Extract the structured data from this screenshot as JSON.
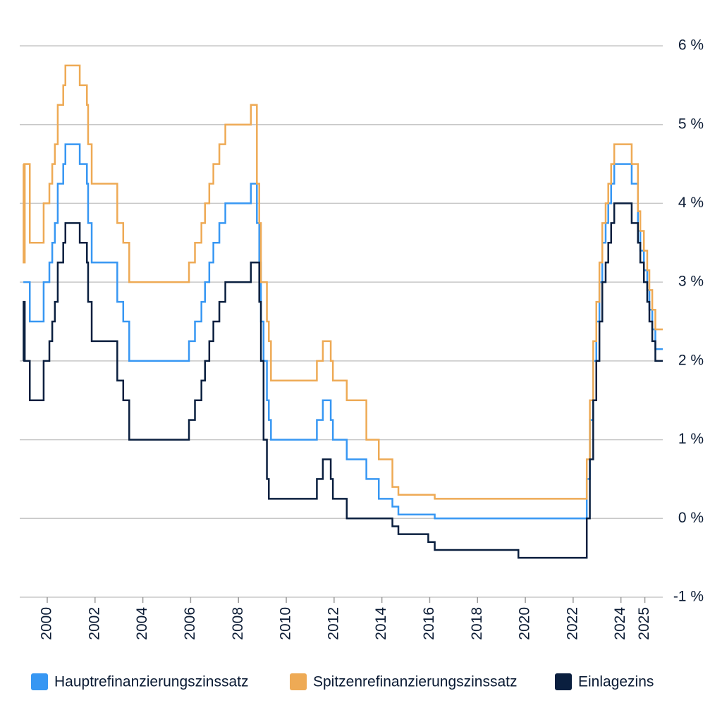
{
  "chart_data": {
    "type": "line",
    "step": true,
    "x": [
      1999.0,
      1999.01,
      1999.06,
      1999.27,
      1999.85,
      2000.09,
      2000.21,
      2000.32,
      2000.44,
      2000.67,
      2000.76,
      2001.36,
      2001.66,
      2001.71,
      2001.86,
      2002.93,
      2003.18,
      2003.43,
      2005.93,
      2006.18,
      2006.45,
      2006.6,
      2006.78,
      2006.95,
      2007.2,
      2007.45,
      2008.52,
      2008.77,
      2008.87,
      2008.94,
      2009.05,
      2009.19,
      2009.27,
      2009.36,
      2011.28,
      2011.53,
      2011.86,
      2011.95,
      2012.53,
      2013.35,
      2013.87,
      2014.44,
      2014.69,
      2015.94,
      2016.21,
      2019.71,
      2022.57,
      2022.7,
      2022.84,
      2022.97,
      2023.1,
      2023.22,
      2023.36,
      2023.47,
      2023.59,
      2023.72,
      2024.45,
      2024.71,
      2024.81,
      2024.96,
      2025.1,
      2025.19,
      2025.31,
      2025.44,
      2025.75
    ],
    "series": [
      {
        "name": "Hauptrefinanzierungszinssatz",
        "color": "#3797f3",
        "values": [
          3.0,
          3.0,
          3.0,
          2.5,
          3.0,
          3.25,
          3.5,
          3.75,
          4.25,
          4.5,
          4.75,
          4.5,
          4.25,
          3.75,
          3.25,
          2.75,
          2.5,
          2.0,
          2.25,
          2.5,
          2.75,
          3.0,
          3.25,
          3.5,
          3.75,
          4.0,
          4.25,
          3.75,
          3.25,
          2.5,
          2.0,
          1.5,
          1.25,
          1.0,
          1.25,
          1.5,
          1.25,
          1.0,
          0.75,
          0.5,
          0.25,
          0.15,
          0.05,
          0.05,
          0.0,
          0.0,
          0.5,
          1.25,
          2.0,
          2.5,
          3.0,
          3.5,
          3.75,
          4.0,
          4.25,
          4.5,
          4.25,
          3.65,
          3.4,
          3.15,
          2.9,
          2.65,
          2.4,
          2.15,
          2.15
        ]
      },
      {
        "name": "Spitzenrefinanzierungszinssatz",
        "color": "#eeaa55",
        "values": [
          4.5,
          3.25,
          4.5,
          3.5,
          4.0,
          4.25,
          4.5,
          4.75,
          5.25,
          5.5,
          5.75,
          5.5,
          5.25,
          4.75,
          4.25,
          3.75,
          3.5,
          3.0,
          3.25,
          3.5,
          3.75,
          4.0,
          4.25,
          4.5,
          4.75,
          5.0,
          5.25,
          4.25,
          3.75,
          3.0,
          3.0,
          2.5,
          2.25,
          1.75,
          2.0,
          2.25,
          2.0,
          1.75,
          1.5,
          1.0,
          0.75,
          0.4,
          0.3,
          0.3,
          0.25,
          0.25,
          0.75,
          1.5,
          2.25,
          2.75,
          3.25,
          3.75,
          4.0,
          4.25,
          4.5,
          4.75,
          4.5,
          3.9,
          3.65,
          3.4,
          3.15,
          2.9,
          2.65,
          2.4,
          2.4
        ]
      },
      {
        "name": "Einlagezins",
        "color": "#0a1f3f",
        "values": [
          2.0,
          2.75,
          2.0,
          1.5,
          2.0,
          2.25,
          2.5,
          2.75,
          3.25,
          3.5,
          3.75,
          3.5,
          3.25,
          2.75,
          2.25,
          1.75,
          1.5,
          1.0,
          1.25,
          1.5,
          1.75,
          2.0,
          2.25,
          2.5,
          2.75,
          3.0,
          3.25,
          3.25,
          2.75,
          2.0,
          1.0,
          0.5,
          0.25,
          0.25,
          0.5,
          0.75,
          0.5,
          0.25,
          0.0,
          0.0,
          0.0,
          -0.1,
          -0.2,
          -0.3,
          -0.4,
          -0.5,
          0.0,
          0.75,
          1.5,
          2.0,
          2.5,
          3.0,
          3.25,
          3.5,
          3.75,
          4.0,
          3.75,
          3.5,
          3.25,
          3.0,
          2.75,
          2.5,
          2.25,
          2.0,
          2.0
        ]
      }
    ],
    "xlim": [
      1998.85,
      2025.75
    ],
    "xticks": [
      2000,
      2002,
      2004,
      2006,
      2008,
      2010,
      2012,
      2014,
      2016,
      2018,
      2020,
      2022,
      2024,
      2025
    ],
    "ylim": [
      -1,
      6
    ],
    "yticks": [
      {
        "value": -1,
        "label": "-1 %"
      },
      {
        "value": 0,
        "label": "0 %"
      },
      {
        "value": 1,
        "label": "1 %"
      },
      {
        "value": 2,
        "label": "2 %"
      },
      {
        "value": 3,
        "label": "3 %"
      },
      {
        "value": 4,
        "label": "4 %"
      },
      {
        "value": 5,
        "label": "5 %"
      },
      {
        "value": 6,
        "label": "6 %"
      }
    ],
    "grid": true,
    "legend": "bottom"
  }
}
